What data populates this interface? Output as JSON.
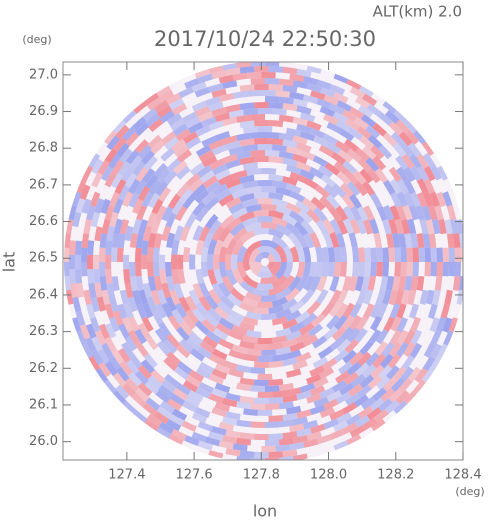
{
  "chart_data": {
    "type": "radar-ppi",
    "title": "2017/10/24 22:50:30",
    "subtitle": "ALT(km) 2.0",
    "x_label": "lon",
    "y_label": "lat",
    "x_unit": "(deg)",
    "y_unit": "(deg)",
    "xlim": [
      127.21,
      128.4
    ],
    "ylim": [
      25.95,
      27.035
    ],
    "xticks": [
      {
        "value": 127.4,
        "label": "127.4"
      },
      {
        "value": 127.6,
        "label": "127.6"
      },
      {
        "value": 127.8,
        "label": "127.8"
      },
      {
        "value": 128.0,
        "label": "128.0"
      },
      {
        "value": 128.2,
        "label": "128.2"
      },
      {
        "value": 128.4,
        "label": "128.4"
      }
    ],
    "yticks": [
      {
        "value": 26.0,
        "label": "26.0"
      },
      {
        "value": 26.1,
        "label": "26.1"
      },
      {
        "value": 26.2,
        "label": "26.2"
      },
      {
        "value": 26.3,
        "label": "26.3"
      },
      {
        "value": 26.4,
        "label": "26.4"
      },
      {
        "value": 26.5,
        "label": "26.5"
      },
      {
        "value": 26.6,
        "label": "26.6"
      },
      {
        "value": 26.7,
        "label": "26.7"
      },
      {
        "value": 26.8,
        "label": "26.8"
      },
      {
        "value": 26.9,
        "label": "26.9"
      },
      {
        "value": 27.0,
        "label": "27.0"
      }
    ]
  }
}
